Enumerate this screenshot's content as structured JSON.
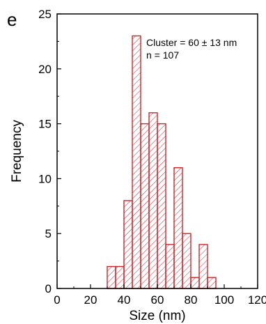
{
  "panel_label": "e",
  "chart_data": {
    "type": "bar",
    "subtype": "histogram",
    "bin_width": 5,
    "bins_left": [
      30,
      35,
      40,
      45,
      50,
      55,
      60,
      65,
      70,
      75,
      80,
      85,
      90
    ],
    "values": [
      2,
      2,
      8,
      23,
      15,
      16,
      15,
      4,
      11,
      5,
      1,
      4,
      1
    ],
    "xlabel": "Size (nm)",
    "ylabel": "Frequency",
    "xlim": [
      0,
      120
    ],
    "ylim": [
      0,
      25
    ],
    "xticks": [
      "0",
      "20",
      "40",
      "60",
      "80",
      "100",
      "120"
    ],
    "yticks": [
      "0",
      "5",
      "10",
      "15",
      "20",
      "25"
    ],
    "annotations": [
      "Cluster = 60 ± 13 nm",
      "n = 107"
    ],
    "bar_edge_color": "#d2232a",
    "bar_fill": "hatched",
    "grid": false,
    "legend": "none"
  }
}
